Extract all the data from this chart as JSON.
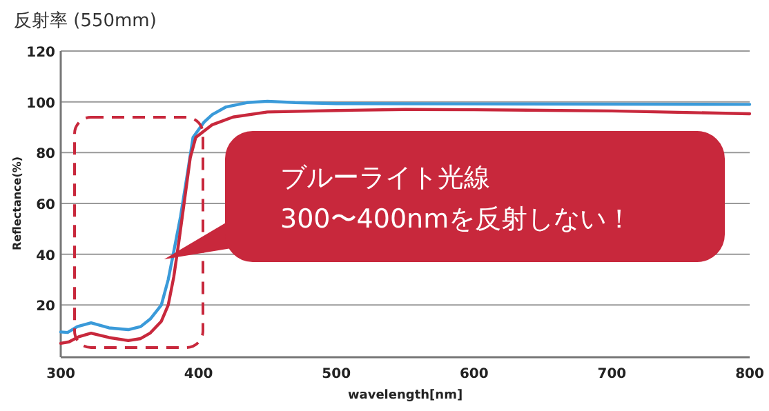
{
  "chart_data": {
    "type": "line",
    "title": "反射率 (550mm)",
    "xlabel": "wavelength[nm]",
    "ylabel": "Reflectance(%)",
    "xlim": [
      300,
      800
    ],
    "xticks": [
      300,
      400,
      500,
      600,
      700,
      800
    ],
    "ylim": [
      0,
      120
    ],
    "yticks": [
      20,
      40,
      60,
      80,
      100,
      120
    ],
    "grid": "y",
    "line_style": "solid",
    "series": [
      {
        "color": "#3a9ad9",
        "x": [
          300,
          305,
          312,
          322,
          335,
          349,
          358,
          365,
          373,
          378,
          382,
          387,
          392,
          396,
          404,
          410,
          420,
          435,
          450,
          470,
          500,
          600,
          700,
          800
        ],
        "values": [
          9.4,
          9.2,
          11.5,
          13,
          11,
          10.3,
          11.5,
          14.5,
          20,
          30,
          41,
          55,
          72,
          86,
          92,
          95,
          98,
          99.7,
          100.2,
          99.7,
          99.3,
          99.2,
          99.1,
          99
        ]
      },
      {
        "color": "#c8283c",
        "x": [
          300,
          306,
          313,
          322,
          335,
          349,
          358,
          365,
          373,
          378,
          382,
          386,
          390,
          394,
          398,
          404,
          410,
          425,
          450,
          500,
          550,
          600,
          700,
          800
        ],
        "values": [
          4.9,
          5.5,
          7.5,
          8.9,
          7.2,
          6,
          6.8,
          9,
          13.6,
          20,
          31,
          46,
          62,
          78,
          86,
          88.5,
          91,
          94,
          96,
          96.6,
          97,
          96.9,
          96.4,
          95.3
        ]
      }
    ],
    "annotations": [
      {
        "text": "ブルーライト光線\n300〜400nmを反射しない！",
        "x": 375,
        "y": 38
      }
    ]
  }
}
